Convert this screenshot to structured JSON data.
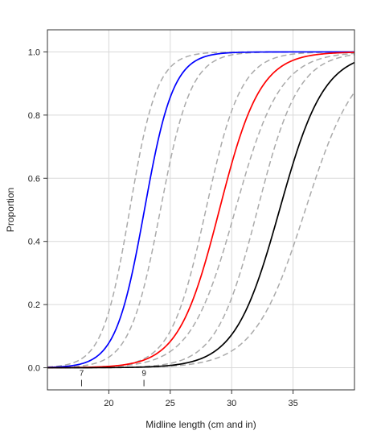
{
  "chart_data": {
    "type": "line",
    "xlabel": "Midline length (cm and in)",
    "ylabel": "Proportion",
    "xlim": [
      15,
      40
    ],
    "ylim": [
      -0.07,
      1.07
    ],
    "grid": true,
    "x_ticks": [
      20,
      25,
      30,
      35
    ],
    "y_ticks": [
      0.0,
      0.2,
      0.4,
      0.6,
      0.8,
      1.0
    ],
    "y_tick_labels": [
      "0.0",
      "0.2",
      "0.4",
      "0.6",
      "0.8",
      "1.0"
    ],
    "secondary_x_ticks": [
      {
        "label": "7",
        "x_cm": 17.78
      },
      {
        "label": "9",
        "x_cm": 22.86
      }
    ],
    "series": [
      {
        "color": "#0000ff",
        "style": "solid",
        "x50": 22.9,
        "slope": 0.85
      },
      {
        "color": "#ff0000",
        "style": "solid",
        "x50": 29.0,
        "slope": 0.6
      },
      {
        "color": "#000000",
        "style": "solid",
        "x50": 33.9,
        "slope": 0.55
      },
      {
        "color": "#aaaaaa",
        "style": "dashed",
        "x50": 21.7,
        "slope": 0.9
      },
      {
        "color": "#aaaaaa",
        "style": "dashed",
        "x50": 24.2,
        "slope": 0.8
      },
      {
        "color": "#aaaaaa",
        "style": "dashed",
        "x50": 27.9,
        "slope": 0.7
      },
      {
        "color": "#aaaaaa",
        "style": "dashed",
        "x50": 30.3,
        "slope": 0.55
      },
      {
        "color": "#aaaaaa",
        "style": "dashed",
        "x50": 32.1,
        "slope": 0.6
      },
      {
        "color": "#aaaaaa",
        "style": "dashed",
        "x50": 36.0,
        "slope": 0.48
      }
    ]
  }
}
